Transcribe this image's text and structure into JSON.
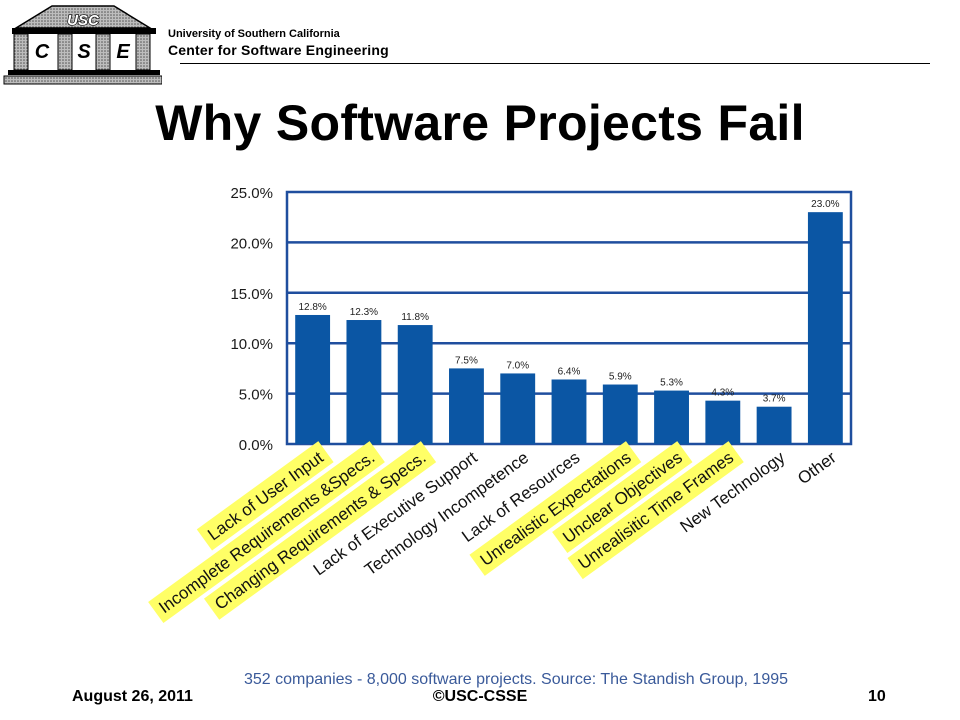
{
  "header": {
    "logo": {
      "top": "USC",
      "letters": [
        "C",
        "S",
        "E"
      ]
    },
    "university": "University of Southern California",
    "center": "Center for Software Engineering"
  },
  "slide": {
    "title": "Why Software Projects Fail"
  },
  "chart_data": {
    "type": "bar",
    "title": "",
    "xlabel": "",
    "ylabel": "",
    "ylim": [
      0,
      25
    ],
    "yticks": [
      "0.0%",
      "5.0%",
      "10.0%",
      "15.0%",
      "20.0%",
      "25.0%"
    ],
    "grid": true,
    "categories": [
      "Lack of User Input",
      "Incomplete Requirements &Specs.",
      "Changing Requirements & Specs.",
      "Lack of Executive Support",
      "Technology Incompetence",
      "Lack of Resources",
      "Unrealistic Expectations",
      "Unclear Objectives",
      "Unrealisitic Time Frames",
      "New Technology",
      "Other"
    ],
    "values": [
      12.8,
      12.3,
      11.8,
      7.5,
      7.0,
      6.4,
      5.9,
      5.3,
      4.3,
      3.7,
      23.0
    ],
    "value_labels": [
      "12.8%",
      "12.3%",
      "11.8%",
      "7.5%",
      "7.0%",
      "6.4%",
      "5.9%",
      "5.3%",
      "4.3%",
      "3.7%",
      "23.0%"
    ],
    "highlighted": [
      true,
      true,
      true,
      false,
      false,
      false,
      true,
      true,
      true,
      false,
      false
    ],
    "bar_color": "#0b56a4",
    "frame_color": "#1f4e9e",
    "highlight_color": "#ffff66",
    "source": "352 companies - 8,000 software projects.   Source: The Standish Group, 1995"
  },
  "footer": {
    "date": "August 26, 2011",
    "copyright": "©USC-CSSE",
    "page": "10"
  }
}
